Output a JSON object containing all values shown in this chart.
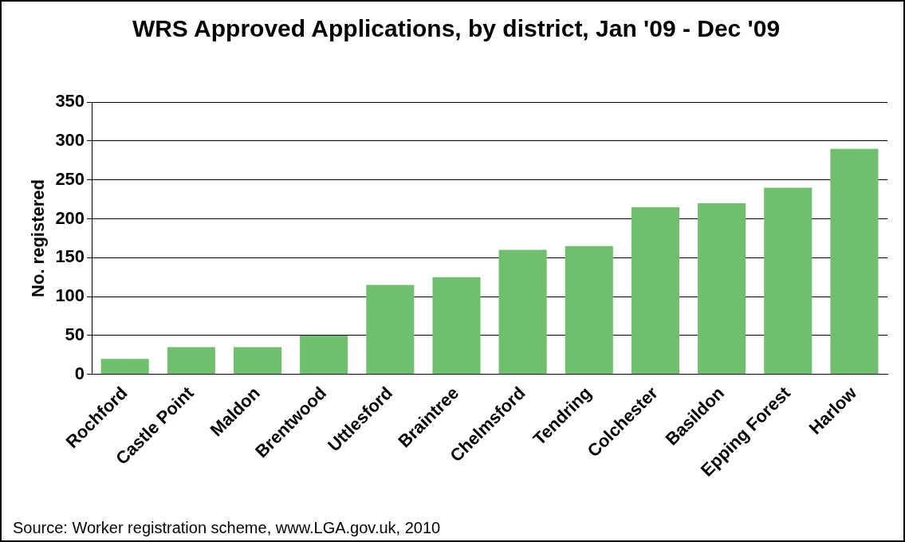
{
  "chart_data": {
    "type": "bar",
    "title": "WRS Approved Applications, by district, Jan '09 - Dec '09",
    "ylabel": "No. registered",
    "categories": [
      "Rochford",
      "Castle Point",
      "Maldon",
      "Brentwood",
      "Uttlesford",
      "Braintree",
      "Chelmsford",
      "Tendring",
      "Colchester",
      "Basildon",
      "Epping Forest",
      "Harlow"
    ],
    "values": [
      20,
      35,
      35,
      50,
      115,
      125,
      160,
      165,
      215,
      220,
      240,
      290
    ],
    "color": "#6fbf6f",
    "ylim": [
      0,
      350
    ],
    "yticks": [
      0,
      50,
      100,
      150,
      200,
      250,
      300,
      350
    ],
    "grid": "y",
    "legend": false,
    "annotations": [
      "Source: Worker registration scheme, www.LGA.gov.uk, 2010"
    ]
  }
}
